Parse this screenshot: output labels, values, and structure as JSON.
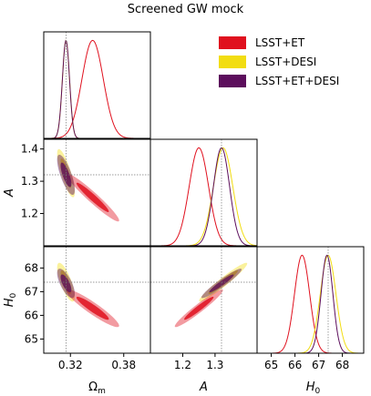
{
  "figure": {
    "title": "Screened GW mock"
  },
  "legend": [
    {
      "label": "LSST+ET",
      "color": "#e0101e"
    },
    {
      "label": "LSST+DESI",
      "color": "#f2dd12"
    },
    {
      "label": "LSST+ET+DESI",
      "color": "#5c0e5c"
    }
  ],
  "chart_data": {
    "type": "corner",
    "title": "Screened GW mock",
    "parameters": [
      {
        "name": "Omega_m",
        "label": "Ωm",
        "range": [
          0.29,
          0.41
        ],
        "ticks": [
          "0.32",
          "0.38"
        ],
        "tick_values": [
          0.32,
          0.38
        ]
      },
      {
        "name": "A",
        "label": "A",
        "range": [
          1.1,
          1.43
        ],
        "ticks": [
          "1.2",
          "1.3"
        ],
        "tick_values": [
          1.2,
          1.3
        ],
        "y_ticks": [
          "1.2",
          "1.3",
          "1.4"
        ],
        "y_tick_values": [
          1.2,
          1.3,
          1.4
        ]
      },
      {
        "name": "H0",
        "label": "H0",
        "range": [
          64.4,
          68.9
        ],
        "ticks": [
          "65",
          "66",
          "67",
          "68"
        ],
        "tick_values": [
          65,
          66,
          67,
          68
        ],
        "y_ticks": [
          "65",
          "66",
          "67",
          "68"
        ],
        "y_tick_values": [
          65,
          66,
          67,
          68
        ]
      }
    ],
    "fiducial": {
      "Omega_m": 0.315,
      "A": 1.32,
      "H0": 67.4
    },
    "series": [
      {
        "name": "LSST+ET",
        "color": "#e0101e",
        "mean": {
          "Omega_m": 0.345,
          "A": 1.25,
          "H0": 66.3
        },
        "sigma": {
          "Omega_m": 0.012,
          "A": 0.03,
          "H0": 0.32
        },
        "corr": {
          "Omega_m_A": -0.96,
          "Omega_m_H0": -0.93,
          "A_H0": 0.96
        }
      },
      {
        "name": "LSST+DESI",
        "color": "#f2dd12",
        "mean": {
          "Omega_m": 0.315,
          "A": 1.325,
          "H0": 67.4
        },
        "sigma": {
          "Omega_m": 0.004,
          "A": 0.03,
          "H0": 0.33
        },
        "corr": {
          "Omega_m_A": -0.8,
          "Omega_m_H0": -0.75,
          "A_H0": 0.96
        }
      },
      {
        "name": "LSST+ET+DESI",
        "color": "#5c0e5c",
        "mean": {
          "Omega_m": 0.315,
          "A": 1.32,
          "H0": 67.35
        },
        "sigma": {
          "Omega_m": 0.004,
          "A": 0.025,
          "H0": 0.25
        },
        "corr": {
          "Omega_m_A": -0.75,
          "Omega_m_H0": -0.7,
          "A_H0": 0.95
        }
      }
    ]
  }
}
